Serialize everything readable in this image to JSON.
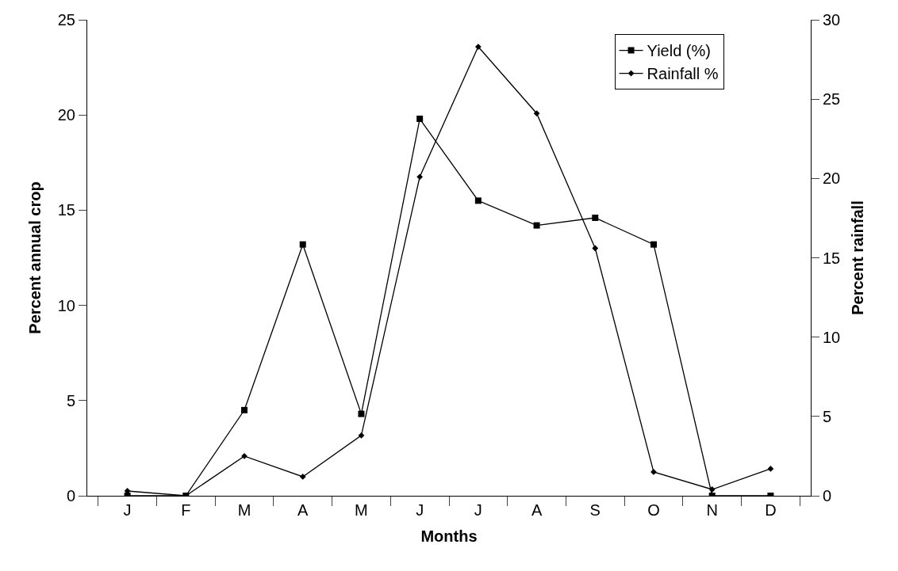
{
  "chart_data": {
    "type": "line",
    "xlabel": "Months",
    "ylabel": "Percent annual crop",
    "y2label": "Percent rainfall",
    "categories": [
      "J",
      "F",
      "M",
      "A",
      "M",
      "J",
      "J",
      "A",
      "S",
      "O",
      "N",
      "D"
    ],
    "series": [
      {
        "name": "Yield (%)",
        "color": "#000000",
        "marker": "square",
        "values": [
          0,
          0,
          4.5,
          13.2,
          4.3,
          19.8,
          15.5,
          14.2,
          14.6,
          13.2,
          0,
          0
        ]
      },
      {
        "name": "Rainfall %",
        "color": "#000000",
        "marker": "diamond",
        "axis": "y2",
        "values": [
          0.3,
          0,
          2.5,
          1.2,
          3.8,
          20.1,
          28.3,
          24.1,
          15.6,
          1.5,
          0.4,
          1.7
        ]
      }
    ],
    "ylim": [
      0,
      25
    ],
    "yticks": [
      0,
      5,
      10,
      15,
      20,
      25
    ],
    "y2lim": [
      0,
      30
    ],
    "y2ticks": [
      0,
      5,
      10,
      15,
      20,
      25,
      30
    ],
    "legend": "top right",
    "line_style": "solid"
  }
}
